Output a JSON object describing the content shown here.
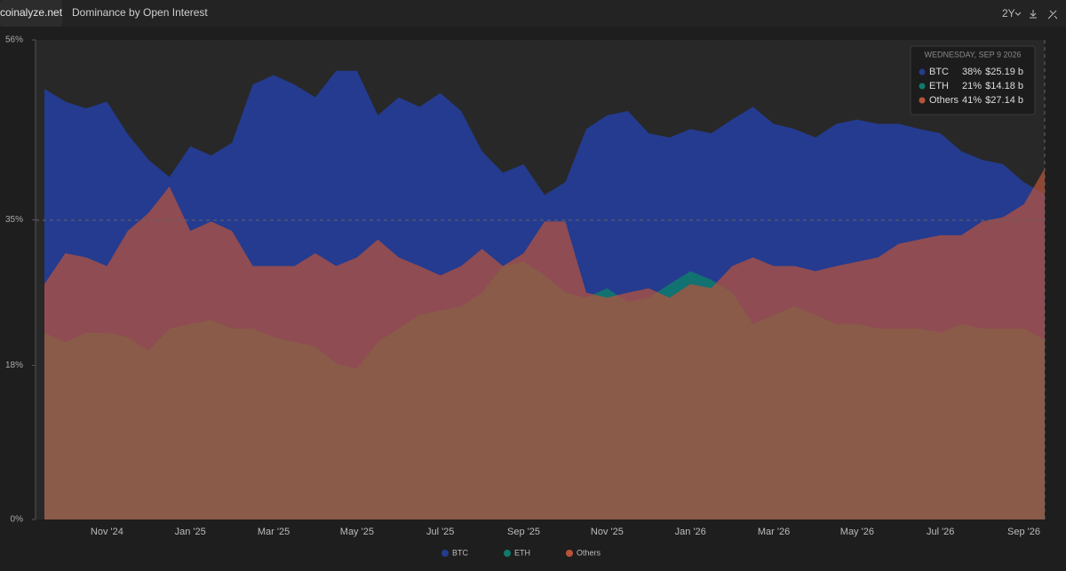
{
  "header": {
    "brand": "coinalyze.net",
    "title": "Dominance by Open Interest",
    "range": "2Y"
  },
  "chart_data": {
    "type": "area",
    "categories": [
      null,
      null,
      null,
      "Nov '24",
      null,
      null,
      null,
      "Jan '25",
      null,
      null,
      null,
      "Mar '25",
      null,
      null,
      null,
      "May '25",
      null,
      null,
      null,
      "Jul '25",
      null,
      null,
      null,
      "Sep '25",
      null,
      null,
      null,
      "Nov '25",
      null,
      null,
      null,
      "Jan '26",
      null,
      null,
      null,
      "Mar '26",
      null,
      null,
      null,
      "May '26",
      null,
      null,
      null,
      "Jul '26",
      null,
      null,
      null,
      "Sep '26",
      null
    ],
    "ylim": [
      0,
      56
    ],
    "yticks": [
      {
        "value": 0,
        "label": "0%"
      },
      {
        "value": 18,
        "label": "18%"
      },
      {
        "value": 35,
        "label": "35%"
      },
      {
        "value": 56,
        "label": "56%"
      }
    ],
    "legend": "bottom",
    "series": [
      {
        "name": "BTC",
        "color": "#243b8f",
        "values": [
          50.3,
          48.8,
          48,
          48.8,
          45,
          42,
          40,
          43.6,
          42.5,
          44,
          50.8,
          51.9,
          50.8,
          49.3,
          52.4,
          52.4,
          47.2,
          49.3,
          48.2,
          49.8,
          47.7,
          43,
          40.5,
          41.5,
          37.9,
          39.4,
          45.6,
          47.2,
          47.7,
          45.1,
          44.6,
          45.6,
          45.1,
          46.7,
          48.2,
          46.2,
          45.6,
          44.6,
          46.2,
          46.7,
          46.2,
          46.2,
          45.6,
          45.1,
          43,
          42,
          41.5,
          39.4,
          38
        ]
      },
      {
        "name": "ETH",
        "color": "#0f7b6c",
        "values": [
          21.8,
          20.7,
          21.8,
          21.8,
          21.3,
          19.7,
          22.3,
          22.8,
          23.3,
          22.3,
          22.3,
          21.3,
          20.7,
          20.2,
          18.2,
          17.6,
          20.7,
          22.3,
          23.9,
          24.4,
          24.9,
          26.5,
          29.6,
          30.1,
          28.5,
          26.5,
          25.9,
          27,
          25.4,
          25.9,
          27.5,
          29,
          28,
          26.5,
          22.8,
          23.9,
          24.9,
          23.9,
          22.8,
          22.8,
          22.3,
          22.3,
          22.3,
          21.8,
          22.8,
          22.3,
          22.3,
          22.3,
          21
        ]
      },
      {
        "name": "Others",
        "color": "#b8533a",
        "values": [
          27.5,
          31.1,
          30.6,
          29.6,
          33.7,
          35.8,
          38.9,
          33.7,
          34.8,
          33.7,
          29.6,
          29.6,
          29.6,
          31.1,
          29.6,
          30.6,
          32.7,
          30.6,
          29.6,
          28.5,
          29.6,
          31.6,
          29.6,
          31.1,
          34.8,
          34.8,
          26.5,
          25.9,
          26.5,
          27,
          25.9,
          27.5,
          27,
          29.6,
          30.6,
          29.6,
          29.6,
          29,
          29.6,
          30.1,
          30.6,
          32.2,
          32.7,
          33.2,
          33.2,
          34.8,
          35.3,
          36.8,
          41
        ]
      }
    ]
  },
  "tooltip": {
    "date": "WEDNESDAY, SEP 9 2026",
    "rows": [
      {
        "pct": "38%",
        "amount": "$25.19 b"
      },
      {
        "pct": "21%",
        "amount": "$14.18 b"
      },
      {
        "pct": "41%",
        "amount": "$27.14 b"
      }
    ]
  }
}
